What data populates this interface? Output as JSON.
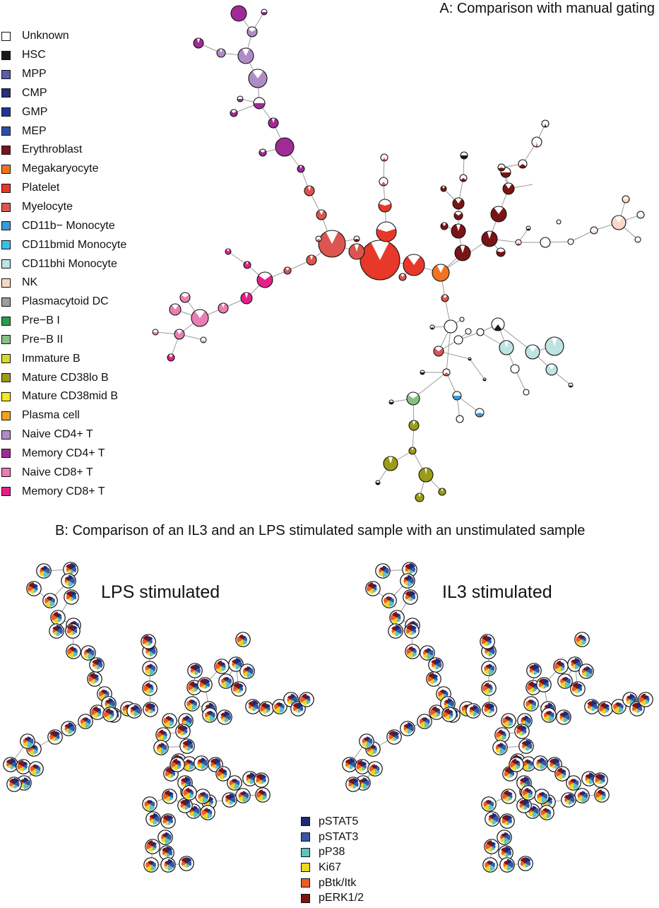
{
  "panel_a": {
    "title": "A: Comparison with manual gating",
    "legend": [
      {
        "label": "Unknown",
        "color": "#ffffff"
      },
      {
        "label": "HSC",
        "color": "#1a1a1a"
      },
      {
        "label": "MPP",
        "color": "#5b5eaa"
      },
      {
        "label": "CMP",
        "color": "#252f7a"
      },
      {
        "label": "GMP",
        "color": "#22359c"
      },
      {
        "label": "MEP",
        "color": "#2d4fa8"
      },
      {
        "label": "Erythroblast",
        "color": "#7a1416"
      },
      {
        "label": "Megakaryocyte",
        "color": "#f07322"
      },
      {
        "label": "Platelet",
        "color": "#e8382a"
      },
      {
        "label": "Myelocyte",
        "color": "#dd5550"
      },
      {
        "label": "CD11b− Monocyte",
        "color": "#3a9bd5"
      },
      {
        "label": "CD11bmid Monocyte",
        "color": "#3bbfe8"
      },
      {
        "label": "CD11bhi Monocyte",
        "color": "#bde3e3"
      },
      {
        "label": "NK",
        "color": "#fbd8c4"
      },
      {
        "label": "Plasmacytoid DC",
        "color": "#9e9e9e"
      },
      {
        "label": "Pre−B I",
        "color": "#2a9d48"
      },
      {
        "label": "Pre−B II",
        "color": "#86c083"
      },
      {
        "label": "Immature B",
        "color": "#d2db2a"
      },
      {
        "label": "Mature CD38lo B",
        "color": "#9a9b18"
      },
      {
        "label": "Mature CD38mid B",
        "color": "#f4ea1d"
      },
      {
        "label": "Plasma cell",
        "color": "#f5a21c"
      },
      {
        "label": "Naive CD4+ T",
        "color": "#b08cc6"
      },
      {
        "label": "Memory CD4+ T",
        "color": "#a02b96"
      },
      {
        "label": "Naive CD8+ T",
        "color": "#ea7eb2"
      },
      {
        "label": "Memory CD8+ T",
        "color": "#e51f8a"
      }
    ]
  },
  "panel_b": {
    "title": "B: Comparison of an IL3 and an LPS stimulated sample with an unstimulated sample",
    "subtitle_lps": "LPS stimulated",
    "subtitle_il3": "IL3 stimulated",
    "legend": [
      {
        "label": "pSTAT5",
        "color": "#1e2a78"
      },
      {
        "label": "pSTAT3",
        "color": "#3558a8"
      },
      {
        "label": "pP38",
        "color": "#5cc3bf"
      },
      {
        "label": "Ki67",
        "color": "#ecd81e"
      },
      {
        "label": "pBtk/Itk",
        "color": "#ee5a24"
      },
      {
        "label": "pERK1/2",
        "color": "#7a1416"
      }
    ]
  }
}
